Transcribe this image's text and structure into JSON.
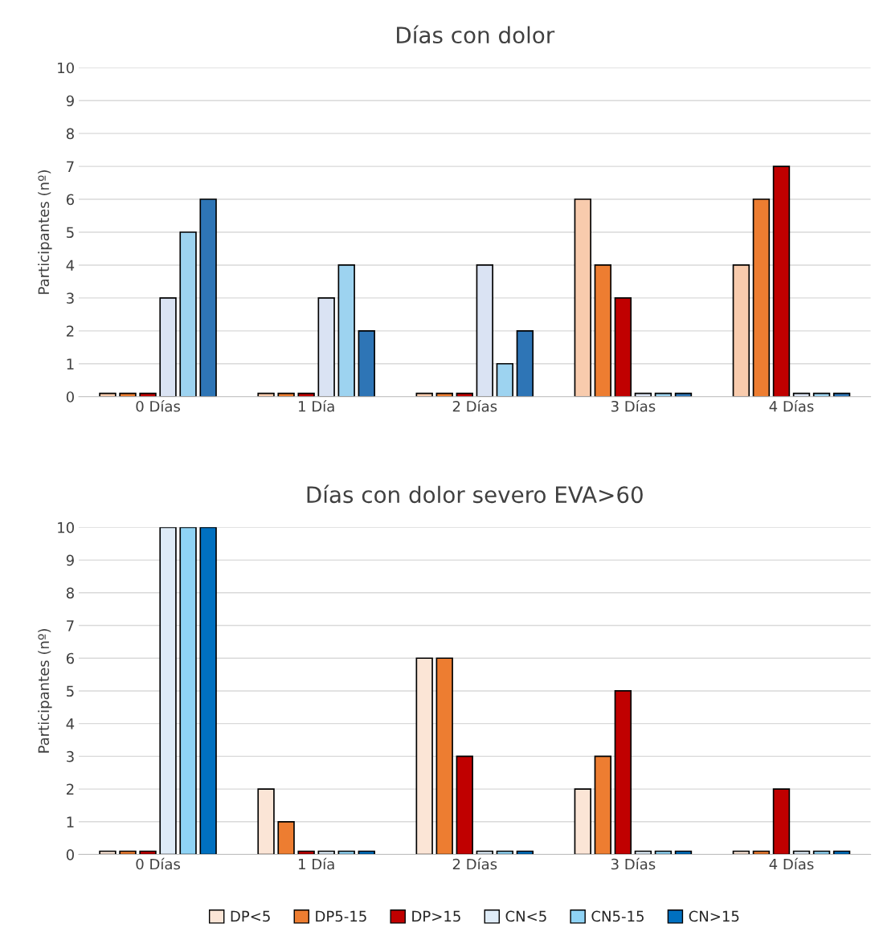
{
  "chart_data": [
    {
      "type": "bar",
      "title": "Días con dolor",
      "ylabel": "Participantes (nº)",
      "categories": [
        "0 Días",
        "1 Día",
        "2 Días",
        "3 Días",
        "4 Días"
      ],
      "ylim": [
        0,
        10
      ],
      "yticks": [
        0,
        1,
        2,
        3,
        4,
        5,
        6,
        7,
        8,
        9,
        10
      ],
      "grid": "y",
      "legend": false,
      "series": [
        {
          "color": "#f8cbad",
          "values": [
            0.1,
            0.1,
            0.1,
            6,
            4
          ]
        },
        {
          "color": "#ed7d31",
          "values": [
            0.1,
            0.1,
            0.1,
            4,
            6
          ]
        },
        {
          "color": "#c00000",
          "values": [
            0.1,
            0.1,
            0.1,
            3,
            7
          ]
        },
        {
          "color": "#dae3f3",
          "values": [
            3,
            3,
            4,
            0.1,
            0.1
          ]
        },
        {
          "color": "#9dd3f0",
          "values": [
            5,
            4,
            1,
            0.1,
            0.1
          ]
        },
        {
          "color": "#2e75b6",
          "values": [
            6,
            2,
            2,
            0.1,
            0.1
          ]
        }
      ]
    },
    {
      "type": "bar",
      "title": "Días con dolor severo EVA>60",
      "ylabel": "Participantes (nº)",
      "categories": [
        "0 Días",
        "1 Día",
        "2 Días",
        "3 Días",
        "4 Días"
      ],
      "ylim": [
        0,
        10
      ],
      "yticks": [
        0,
        1,
        2,
        3,
        4,
        5,
        6,
        7,
        8,
        9,
        10
      ],
      "grid": "y",
      "legend": "bottom",
      "series": [
        {
          "name": "DP<5",
          "color": "#fbe5d6",
          "values": [
            0.1,
            2,
            6,
            2,
            0.1
          ]
        },
        {
          "name": "DP5-15",
          "color": "#ed7d31",
          "values": [
            0.1,
            1,
            6,
            3,
            0.1
          ]
        },
        {
          "name": "DP>15",
          "color": "#c00000",
          "values": [
            0.1,
            0.1,
            3,
            5,
            2
          ]
        },
        {
          "name": "CN<5",
          "color": "#deebf7",
          "values": [
            10,
            0.1,
            0.1,
            0.1,
            0.1
          ]
        },
        {
          "name": "CN5-15",
          "color": "#8fd3f5",
          "values": [
            10,
            0.1,
            0.1,
            0.1,
            0.1
          ]
        },
        {
          "name": "CN>15",
          "color": "#0070c0",
          "values": [
            10,
            0.1,
            0.1,
            0.1,
            0.1
          ]
        }
      ]
    }
  ]
}
